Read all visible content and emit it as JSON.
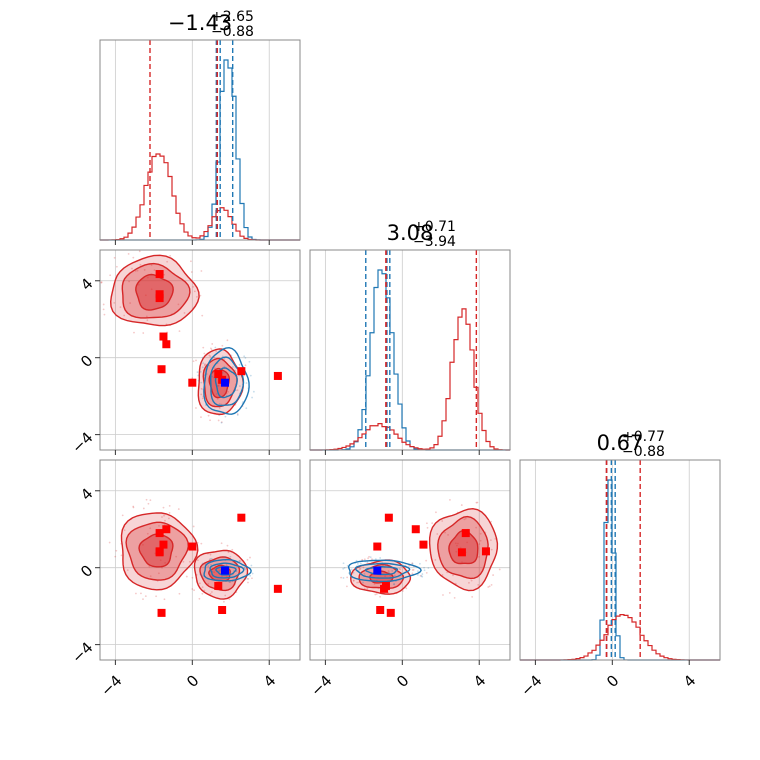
{
  "colors": {
    "blue": "#1f77b4",
    "red": "#d62728",
    "marker_red": "#ff0000",
    "marker_blue": "#0000ff",
    "grid": "#cccccc",
    "frame": "#888888"
  },
  "chart_data": {
    "type": "corner",
    "parameters": 3,
    "axis_range": [
      -4.8,
      5.6
    ],
    "ticks": [
      -4,
      0,
      4
    ],
    "tick_labels": [
      "−4",
      "0",
      "4"
    ],
    "titles": [
      {
        "main": "−1.43",
        "plus": "+2.65",
        "minus": "−0.88"
      },
      {
        "main": "3.08",
        "plus": "+0.71",
        "minus": "−3.94"
      },
      {
        "main": "0.67",
        "plus": "+0.77",
        "minus": "−0.88"
      }
    ],
    "series": [
      {
        "color": "blue",
        "quantiles": [
          [
            1.25,
            1.45,
            2.1
          ],
          [
            -1.9,
            -0.8,
            -0.65
          ],
          [
            -0.3,
            -0.05,
            0.15
          ]
        ],
        "hist_mix": [
          [
            {
              "w": 1.0,
              "mu": 1.85,
              "sd": 0.4
            }
          ],
          [
            {
              "w": 1.0,
              "mu": -1.05,
              "sd": 0.55
            }
          ],
          [
            {
              "w": 1.0,
              "mu": -0.15,
              "sd": 0.22
            }
          ]
        ],
        "blobs": [
          {
            "panel": [
              0,
              1
            ],
            "cx": 1.75,
            "cy": -1.3,
            "rx": [
              1.15,
              0.85,
              0.55
            ],
            "ry": [
              1.7,
              1.25,
              0.75
            ]
          },
          {
            "panel": [
              0,
              2
            ],
            "cx": 1.75,
            "cy": -0.15,
            "rx": [
              1.2,
              0.85,
              0.5
            ],
            "ry": [
              0.55,
              0.38,
              0.22
            ]
          },
          {
            "panel": [
              1,
              2
            ],
            "cx": -1.05,
            "cy": -0.15,
            "rx": [
              1.85,
              1.35,
              0.8
            ],
            "ry": [
              0.55,
              0.38,
              0.2
            ]
          }
        ]
      },
      {
        "color": "red",
        "quantiles": [
          [
            -2.2,
            1.3,
            1.3
          ],
          [
            -0.85,
            -0.85,
            3.85
          ],
          [
            -0.3,
            -0.3,
            1.45
          ]
        ],
        "hist_mix": [
          [
            {
              "w": 0.78,
              "mu": -1.75,
              "sd": 0.65
            },
            {
              "w": 0.22,
              "mu": 1.55,
              "sd": 0.5
            }
          ],
          [
            {
              "w": 0.22,
              "mu": -1.2,
              "sd": 0.85
            },
            {
              "w": 0.78,
              "mu": 3.15,
              "sd": 0.55
            }
          ],
          [
            {
              "w": 1.0,
              "mu": 0.6,
              "sd": 0.9
            }
          ]
        ],
        "blobs": [
          {
            "panel": [
              0,
              1
            ],
            "cx": -2.0,
            "cy": 3.4,
            "rx": [
              2.25,
              1.75,
              0.95
            ],
            "ry": [
              1.8,
              1.4,
              0.9
            ]
          },
          {
            "panel": [
              0,
              1
            ],
            "cx": 1.4,
            "cy": -1.3,
            "rx": [
              1.15,
              0.85,
              0.5
            ],
            "ry": [
              1.7,
              1.25,
              0.75
            ]
          },
          {
            "panel": [
              0,
              2
            ],
            "cx": -1.85,
            "cy": 0.9,
            "rx": [
              1.95,
              1.55,
              0.85
            ],
            "ry": [
              2.0,
              1.5,
              0.85
            ]
          },
          {
            "panel": [
              0,
              2
            ],
            "cx": 1.45,
            "cy": -0.3,
            "rx": [
              1.35,
              1.0,
              0.55
            ],
            "ry": [
              1.25,
              0.85,
              0.4
            ]
          },
          {
            "panel": [
              1,
              2
            ],
            "cx": 3.2,
            "cy": 1.0,
            "rx": [
              1.75,
              1.3,
              0.75
            ],
            "ry": [
              2.05,
              1.55,
              0.85
            ]
          },
          {
            "panel": [
              1,
              2
            ],
            "cx": -1.1,
            "cy": -0.5,
            "rx": [
              1.55,
              1.15,
              0.6
            ],
            "ry": [
              0.85,
              0.6,
              0.3
            ]
          }
        ]
      }
    ],
    "markers": [
      {
        "color": "marker_red",
        "points": [
          [
            -1.7,
            4.35,
            0.85
          ],
          [
            -1.7,
            3.3,
            1.8
          ],
          [
            -1.7,
            3.1,
            0.8
          ],
          [
            -1.5,
            1.1,
            1.2
          ],
          [
            -1.35,
            0.7,
            2.0
          ],
          [
            0.0,
            -1.3,
            1.1
          ],
          [
            1.35,
            -0.85,
            -0.95
          ],
          [
            1.55,
            -1.15,
            -2.2
          ],
          [
            2.55,
            -0.7,
            2.6
          ],
          [
            4.45,
            -0.95,
            -1.1
          ],
          [
            -1.6,
            -0.6,
            -2.35
          ]
        ]
      },
      {
        "color": "marker_blue",
        "points": [
          [
            1.7,
            -1.3,
            -0.15
          ]
        ]
      }
    ]
  }
}
